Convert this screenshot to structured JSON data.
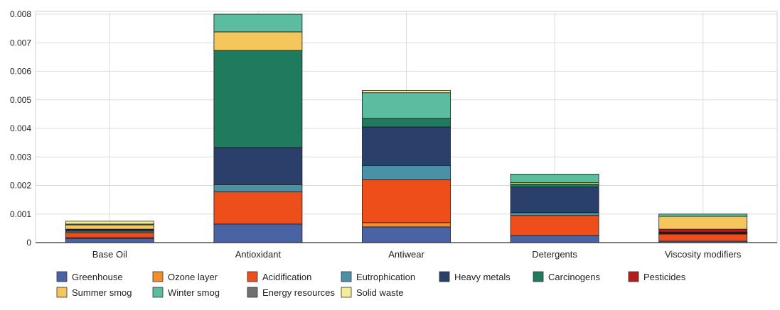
{
  "chart_data": {
    "type": "bar",
    "stacked": true,
    "categories": [
      "Base Oil",
      "Antioxidant",
      "Antiwear",
      "Detergents",
      "Viscosity modifiers"
    ],
    "ylim": [
      0,
      0.008
    ],
    "yticks": [
      "0",
      "0.001",
      "0.002",
      "0.003",
      "0.004",
      "0.005",
      "0.006",
      "0.007",
      "0.008"
    ],
    "grid": true,
    "legend_position": "bottom",
    "series": [
      {
        "name": "Greenhouse",
        "color": "#4a63a4",
        "values": [
          0.00015,
          0.00065,
          0.00055,
          0.00025,
          5e-05
        ]
      },
      {
        "name": "Ozone layer",
        "color": "#f28e2b",
        "values": [
          2e-05,
          0.0,
          0.00015,
          0.0,
          0.0
        ]
      },
      {
        "name": "Acidification",
        "color": "#ee4e19",
        "values": [
          0.00018,
          0.00113,
          0.0015,
          0.0007,
          0.00025
        ]
      },
      {
        "name": "Eutrophication",
        "color": "#4b91a6",
        "values": [
          5e-05,
          0.00025,
          0.0005,
          0.0001,
          2e-05
        ]
      },
      {
        "name": "Heavy metals",
        "color": "#2b3f6b",
        "values": [
          5e-05,
          0.0013,
          0.00135,
          0.0009,
          3e-05
        ]
      },
      {
        "name": "Carcinogens",
        "color": "#1f7a5e",
        "values": [
          2e-05,
          0.0034,
          0.0003,
          0.0001,
          2e-05
        ]
      },
      {
        "name": "Pesticides",
        "color": "#b71c1c",
        "values": [
          0.0,
          0.0,
          0.0,
          0.0,
          0.0001
        ]
      },
      {
        "name": "Summer smog",
        "color": "#f4c65c",
        "values": [
          0.00015,
          0.00065,
          0.0,
          5e-05,
          0.00045
        ]
      },
      {
        "name": "Winter smog",
        "color": "#5bbca0",
        "values": [
          3e-05,
          0.00062,
          0.0009,
          0.0003,
          8e-05
        ]
      },
      {
        "name": "Energy resources",
        "color": "#707070",
        "values": [
          0.0,
          0.0,
          0.0,
          0.0,
          0.0
        ]
      },
      {
        "name": "Solid waste",
        "color": "#f7ec9c",
        "values": [
          0.0001,
          0.0,
          8e-05,
          0.0,
          0.0
        ]
      }
    ]
  }
}
